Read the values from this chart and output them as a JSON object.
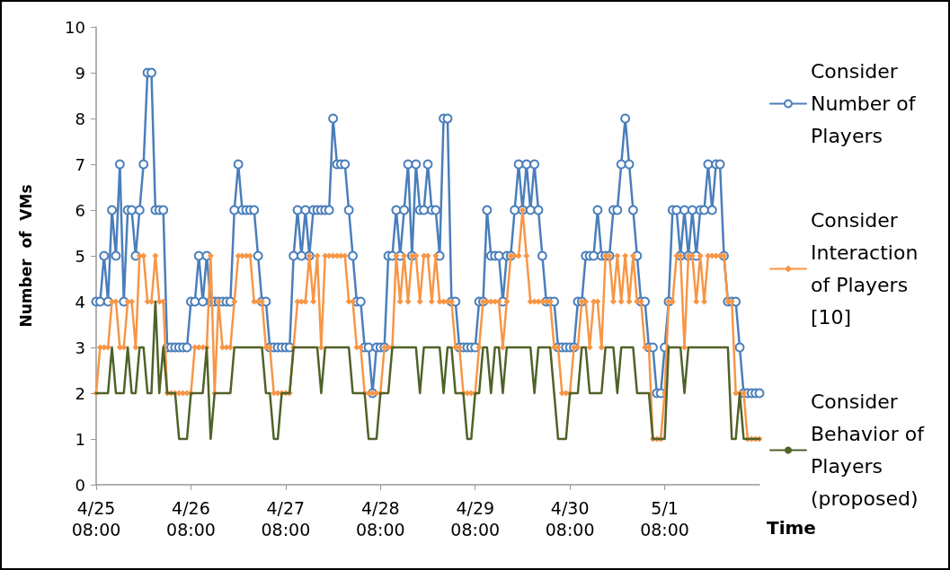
{
  "chart_data": {
    "type": "line",
    "xlabel": "Time",
    "ylabel": "Number  of  VMs",
    "categories": [
      "4/25\n08:00",
      null,
      null,
      null,
      null,
      null,
      null,
      null,
      null,
      null,
      null,
      null,
      null,
      null,
      null,
      null,
      null,
      null,
      null,
      null,
      null,
      null,
      null,
      null,
      "4/26\n08:00",
      null,
      null,
      null,
      null,
      null,
      null,
      null,
      null,
      null,
      null,
      null,
      null,
      null,
      null,
      null,
      null,
      null,
      null,
      null,
      null,
      null,
      null,
      null,
      "4/27\n08:00",
      null,
      null,
      null,
      null,
      null,
      null,
      null,
      null,
      null,
      null,
      null,
      null,
      null,
      null,
      null,
      null,
      null,
      null,
      null,
      null,
      null,
      null,
      null,
      "4/28\n08:00",
      null,
      null,
      null,
      null,
      null,
      null,
      null,
      null,
      null,
      null,
      null,
      null,
      null,
      null,
      null,
      null,
      null,
      null,
      null,
      null,
      null,
      null,
      null,
      "4/29\n08:00",
      null,
      null,
      null,
      null,
      null,
      null,
      null,
      null,
      null,
      null,
      null,
      null,
      null,
      null,
      null,
      null,
      null,
      null,
      null,
      null,
      null,
      null,
      null,
      "4/30\n08:00",
      null,
      null,
      null,
      null,
      null,
      null,
      null,
      null,
      null,
      null,
      null,
      null,
      null,
      null,
      null,
      null,
      null,
      null,
      null,
      null,
      null,
      null,
      null,
      "5/1\n08:00",
      null,
      null,
      null,
      null,
      null,
      null,
      null,
      null,
      null,
      null,
      null,
      null,
      null,
      null,
      null,
      null,
      null,
      null,
      null,
      null,
      null,
      null,
      null,
      null
    ],
    "series": [
      {
        "name": "Consider Number of Players",
        "color": "#4a7ebb",
        "marker": "circle",
        "values": [
          4,
          4,
          5,
          4,
          6,
          5,
          7,
          4,
          6,
          6,
          5,
          6,
          7,
          9,
          9,
          6,
          6,
          6,
          3,
          3,
          3,
          3,
          3,
          3,
          4,
          4,
          5,
          4,
          5,
          4,
          4,
          4,
          4,
          4,
          4,
          6,
          7,
          6,
          6,
          6,
          6,
          5,
          4,
          4,
          3,
          3,
          3,
          3,
          3,
          3,
          5,
          6,
          5,
          6,
          5,
          6,
          6,
          6,
          6,
          6,
          8,
          7,
          7,
          7,
          6,
          5,
          4,
          4,
          3,
          3,
          2,
          3,
          3,
          3,
          5,
          5,
          6,
          5,
          6,
          7,
          5,
          7,
          6,
          6,
          7,
          6,
          6,
          5,
          8,
          8,
          4,
          4,
          3,
          3,
          3,
          3,
          3,
          4,
          4,
          6,
          5,
          5,
          5,
          4,
          5,
          5,
          6,
          7,
          6,
          7,
          6,
          7,
          6,
          5,
          4,
          4,
          4,
          3,
          3,
          3,
          3,
          3,
          4,
          4,
          5,
          5,
          5,
          6,
          5,
          5,
          5,
          6,
          6,
          7,
          8,
          7,
          6,
          5,
          4,
          4,
          3,
          3,
          2,
          2,
          3,
          4,
          6,
          6,
          5,
          6,
          5,
          6,
          5,
          6,
          6,
          7,
          6,
          7,
          7,
          5,
          4,
          4,
          4,
          3,
          2,
          2,
          2,
          2,
          2
        ]
      },
      {
        "name": "Consider Interaction of Players [10]",
        "color": "#f79646",
        "marker": "diamond",
        "values": [
          2,
          3,
          3,
          3,
          4,
          4,
          3,
          3,
          4,
          4,
          3,
          5,
          5,
          4,
          4,
          5,
          4,
          4,
          2,
          2,
          2,
          2,
          2,
          2,
          2,
          3,
          3,
          3,
          3,
          5,
          2,
          4,
          3,
          3,
          3,
          4,
          5,
          5,
          5,
          5,
          4,
          4,
          4,
          3,
          3,
          2,
          2,
          2,
          2,
          2,
          3,
          4,
          4,
          4,
          5,
          4,
          5,
          3,
          5,
          5,
          5,
          5,
          5,
          5,
          4,
          4,
          3,
          3,
          2,
          2,
          2,
          2,
          2,
          3,
          3,
          3,
          5,
          4,
          5,
          4,
          5,
          5,
          4,
          5,
          5,
          4,
          5,
          4,
          4,
          4,
          4,
          3,
          3,
          2,
          2,
          2,
          2,
          3,
          4,
          4,
          4,
          4,
          4,
          3,
          4,
          5,
          5,
          5,
          6,
          5,
          4,
          4,
          4,
          4,
          4,
          4,
          3,
          3,
          2,
          2,
          2,
          3,
          3,
          4,
          4,
          3,
          4,
          4,
          3,
          5,
          5,
          4,
          5,
          4,
          5,
          4,
          5,
          4,
          4,
          3,
          3,
          1,
          1,
          1,
          2,
          4,
          4,
          5,
          5,
          3,
          5,
          5,
          4,
          5,
          4,
          5,
          5,
          5,
          5,
          5,
          4,
          4,
          2,
          2,
          2,
          1,
          1,
          1,
          1
        ]
      },
      {
        "name": "Consider Behavior of Players (proposed)",
        "color": "#4f6228",
        "marker": "none",
        "values": [
          2,
          2,
          2,
          2,
          3,
          2,
          2,
          2,
          3,
          2,
          2,
          3,
          3,
          2,
          2,
          4,
          2,
          3,
          2,
          2,
          2,
          1,
          1,
          1,
          2,
          2,
          2,
          2,
          3,
          1,
          2,
          2,
          2,
          2,
          2,
          3,
          3,
          3,
          3,
          3,
          3,
          3,
          3,
          2,
          2,
          1,
          1,
          2,
          2,
          2,
          3,
          3,
          3,
          3,
          3,
          3,
          3,
          2,
          3,
          3,
          3,
          3,
          3,
          3,
          3,
          2,
          2,
          2,
          2,
          1,
          1,
          1,
          2,
          2,
          2,
          3,
          3,
          3,
          3,
          3,
          3,
          3,
          2,
          3,
          3,
          3,
          3,
          3,
          2,
          3,
          3,
          2,
          2,
          2,
          1,
          1,
          2,
          2,
          3,
          3,
          2,
          3,
          3,
          2,
          3,
          3,
          3,
          3,
          3,
          3,
          3,
          2,
          3,
          3,
          3,
          3,
          2,
          1,
          1,
          1,
          2,
          2,
          2,
          3,
          3,
          2,
          2,
          2,
          2,
          3,
          3,
          3,
          2,
          3,
          3,
          3,
          3,
          2,
          2,
          2,
          2,
          1,
          1,
          1,
          1,
          3,
          3,
          3,
          3,
          2,
          3,
          3,
          3,
          3,
          3,
          3,
          3,
          3,
          3,
          3,
          3,
          1,
          1,
          2,
          1,
          1,
          1,
          1,
          1
        ]
      }
    ],
    "ylim": [
      0,
      10
    ],
    "yticks": [
      0,
      1,
      2,
      3,
      4,
      5,
      6,
      7,
      8,
      9,
      10
    ],
    "grid": false,
    "legend": "right"
  }
}
